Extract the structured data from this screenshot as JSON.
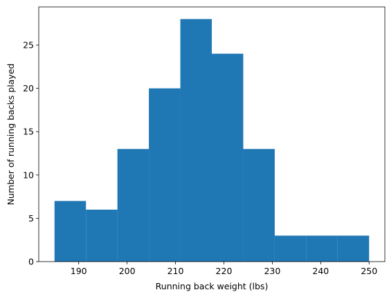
{
  "chart_data": {
    "type": "bar",
    "subtype": "histogram",
    "title": "",
    "xlabel": "Running back weight (lbs)",
    "ylabel": "Number of running backs played",
    "bin_edges": [
      185,
      191.5,
      198,
      204.5,
      211,
      217.5,
      224,
      230.5,
      237,
      243.5,
      250
    ],
    "counts": [
      7,
      6,
      13,
      20,
      28,
      24,
      13,
      3,
      3,
      3
    ],
    "xlim": [
      181.75,
      253.25
    ],
    "ylim": [
      0,
      29.4
    ],
    "xticks": [
      190,
      200,
      210,
      220,
      230,
      240,
      250
    ],
    "yticks": [
      0,
      5,
      10,
      15,
      20,
      25
    ],
    "bar_color": "#1f77b4",
    "grid": false,
    "legend": "none"
  }
}
